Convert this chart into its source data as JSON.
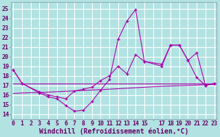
{
  "background_color": "#b2e2e2",
  "grid_color": "#ffffff",
  "line_color": "#aa00aa",
  "xlabel": "Windchill (Refroidissement éolien,°C)",
  "xlabel_fontsize": 7,
  "ylabel_ticks": [
    14,
    15,
    16,
    17,
    18,
    19,
    20,
    21,
    22,
    23,
    24,
    25
  ],
  "xtick_labels": [
    "0",
    "1",
    "2",
    "3",
    "4",
    "5",
    "6",
    "7",
    "8",
    "9",
    "10",
    "11",
    "12",
    "13",
    "14",
    "15",
    "",
    "17",
    "18",
    "19",
    "20",
    "21",
    "22",
    "23"
  ],
  "ylim": [
    13.5,
    25.7
  ],
  "xlim": [
    -0.3,
    23.3
  ],
  "series1_x": [
    0,
    1,
    3,
    4,
    5,
    6,
    7,
    8,
    9,
    10,
    11,
    12,
    13,
    14,
    15,
    17,
    18,
    19,
    20,
    21,
    22,
    23
  ],
  "series1_y": [
    18.6,
    17.2,
    16.2,
    15.8,
    15.6,
    14.9,
    14.3,
    14.4,
    15.3,
    16.5,
    17.6,
    21.8,
    23.7,
    24.9,
    19.5,
    19.0,
    21.2,
    21.2,
    19.6,
    17.8,
    17.0,
    17.2
  ],
  "series2_x": [
    0,
    1,
    3,
    4,
    5,
    6,
    7,
    8,
    9,
    10,
    11,
    12,
    13,
    14,
    15,
    17,
    18,
    19,
    20,
    21,
    22,
    23
  ],
  "series2_y": [
    18.6,
    17.2,
    16.3,
    16.0,
    15.8,
    15.6,
    16.4,
    16.6,
    16.8,
    17.5,
    18.0,
    19.0,
    18.2,
    20.2,
    19.5,
    19.2,
    21.2,
    21.2,
    19.6,
    20.4,
    17.0,
    17.2
  ],
  "series3_x": [
    0,
    1,
    3,
    10,
    17,
    22,
    23
  ],
  "series3_y": [
    17.15,
    17.15,
    17.15,
    17.15,
    17.15,
    17.15,
    17.15
  ],
  "series4_x": [
    0,
    1,
    3,
    10,
    17,
    22,
    23
  ],
  "series4_y": [
    16.15,
    16.2,
    16.25,
    16.55,
    16.9,
    17.05,
    17.1
  ],
  "tick_fontsize": 6,
  "tick_color": "#660066"
}
